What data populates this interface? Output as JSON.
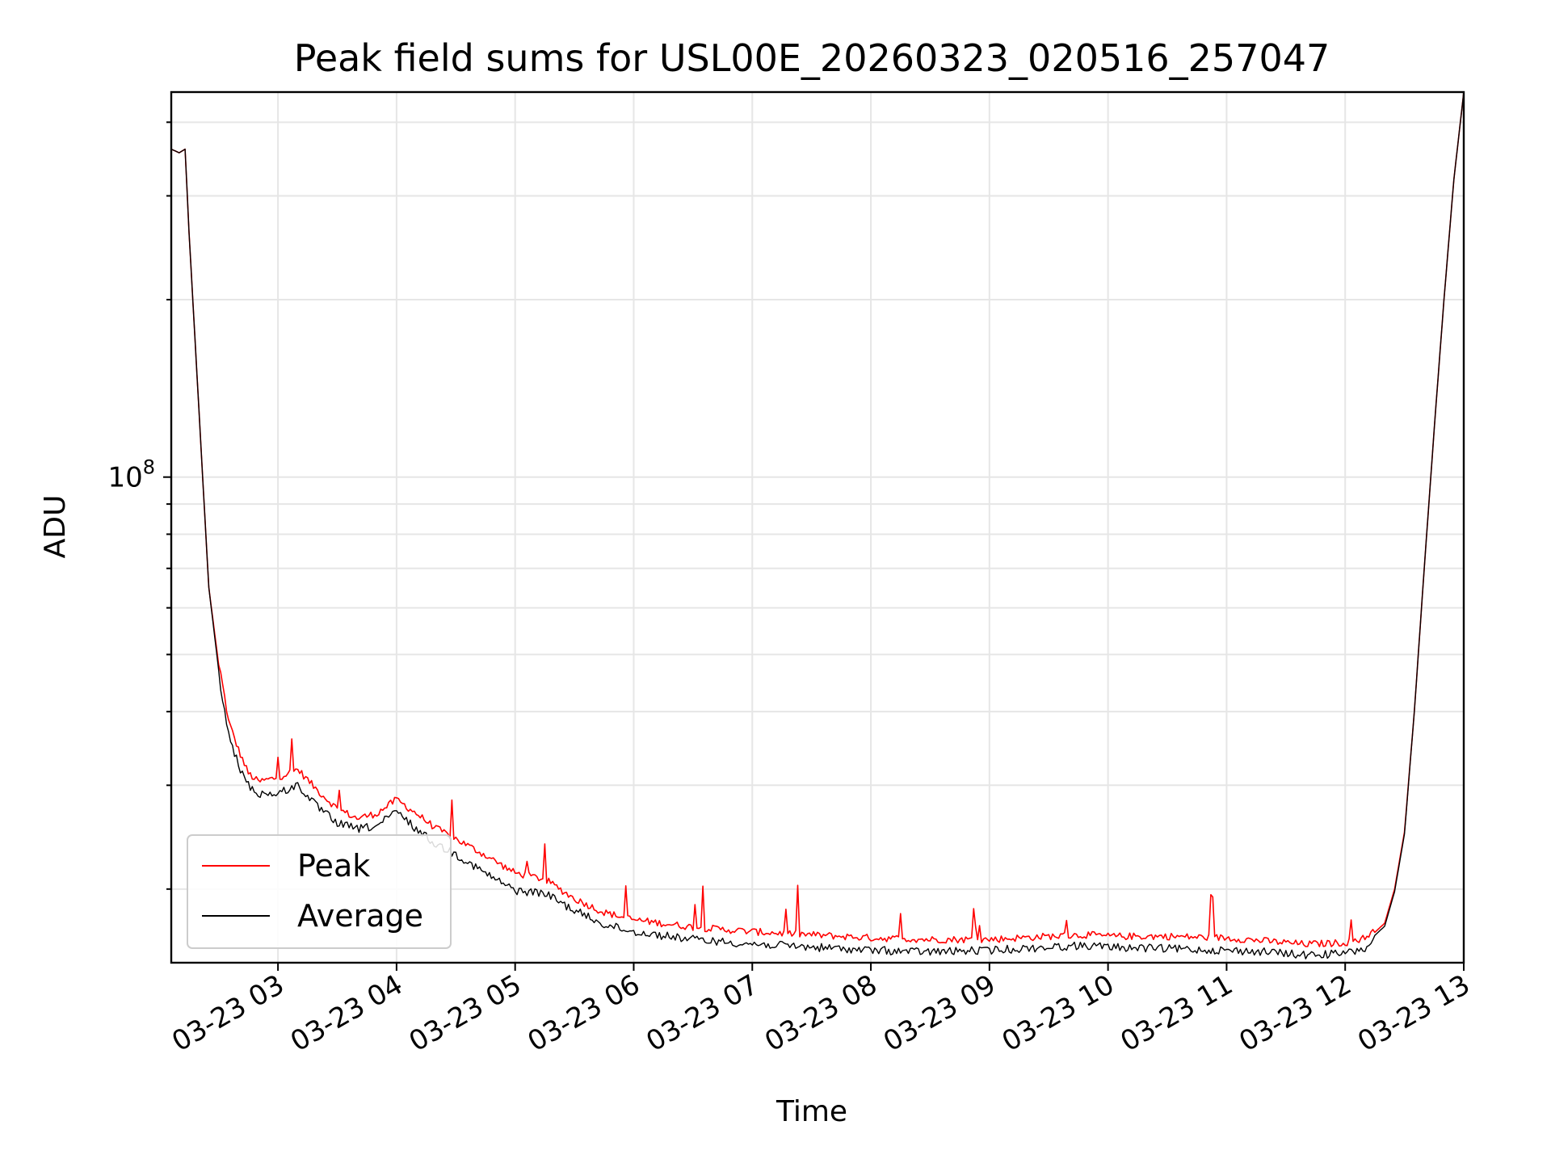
{
  "chart_data": {
    "type": "line",
    "title": "Peak field sums for USL00E_20260323_020516_257047",
    "xlabel": "Time",
    "ylabel": "ADU",
    "y_scale": "log",
    "ylim": [
      15000000,
      450000000
    ],
    "xlim": [
      "03-23 02:06",
      "03-23 13:00"
    ],
    "x_ticks": [
      "03-23 03",
      "03-23 04",
      "03-23 05",
      "03-23 06",
      "03-23 07",
      "03-23 08",
      "03-23 09",
      "03-23 10",
      "03-23 11",
      "03-23 12",
      "03-23 13"
    ],
    "y_ticks": [
      "10^8"
    ],
    "grid": true,
    "legend_position": "lower-left",
    "series": [
      {
        "name": "Peak",
        "color": "#ff0000",
        "x": [
          "02:06",
          "02:10",
          "02:13",
          "02:15",
          "02:20",
          "02:25",
          "02:30",
          "02:35",
          "02:40",
          "02:45",
          "02:50",
          "03:00",
          "03:10",
          "03:20",
          "03:30",
          "03:40",
          "03:50",
          "04:00",
          "04:10",
          "04:20",
          "04:30",
          "04:45",
          "05:00",
          "05:15",
          "05:30",
          "05:45",
          "06:00",
          "06:30",
          "07:00",
          "07:30",
          "08:00",
          "08:30",
          "09:00",
          "09:30",
          "09:50",
          "10:00",
          "10:30",
          "11:00",
          "11:20",
          "11:40",
          "12:00",
          "12:10",
          "12:20",
          "12:25",
          "12:30",
          "12:35",
          "12:40",
          "12:45",
          "12:50",
          "12:55",
          "13:00"
        ],
        "y": [
          360000000,
          355000000,
          360000000,
          260000000,
          130000000,
          65000000,
          48000000,
          38000000,
          34000000,
          31000000,
          30000000,
          30500000,
          31500000,
          29000000,
          27000000,
          26000000,
          26500000,
          28000000,
          26500000,
          25000000,
          24000000,
          22500000,
          21000000,
          20500000,
          19000000,
          18000000,
          17500000,
          17000000,
          16700000,
          16500000,
          16300000,
          16200000,
          16200000,
          16400000,
          16500000,
          16400000,
          16400000,
          16300000,
          16100000,
          15900000,
          16000000,
          16300000,
          17500000,
          20000000,
          25000000,
          40000000,
          70000000,
          120000000,
          200000000,
          320000000,
          450000000
        ]
      },
      {
        "name": "Average",
        "color": "#000000",
        "x": [
          "02:06",
          "02:10",
          "02:13",
          "02:15",
          "02:20",
          "02:25",
          "02:30",
          "02:35",
          "02:40",
          "02:45",
          "02:50",
          "03:00",
          "03:10",
          "03:20",
          "03:30",
          "03:40",
          "03:50",
          "04:00",
          "04:10",
          "04:20",
          "04:30",
          "04:45",
          "05:00",
          "05:15",
          "05:30",
          "05:45",
          "06:00",
          "06:30",
          "07:00",
          "07:30",
          "08:00",
          "08:30",
          "09:00",
          "09:30",
          "09:50",
          "10:00",
          "10:30",
          "11:00",
          "11:20",
          "11:40",
          "12:00",
          "12:10",
          "12:20",
          "12:25",
          "12:30",
          "12:35",
          "12:40",
          "12:45",
          "12:50",
          "12:55",
          "13:00"
        ],
        "y": [
          360000000,
          355000000,
          360000000,
          260000000,
          130000000,
          65000000,
          47000000,
          37000000,
          33000000,
          30500000,
          29500000,
          29500000,
          30500000,
          28000000,
          26300000,
          25700000,
          26000000,
          27500000,
          25700000,
          24200000,
          23300000,
          21600000,
          20200000,
          20000000,
          18700000,
          17700000,
          17200000,
          16700000,
          16400000,
          16200000,
          16000000,
          15900000,
          16000000,
          16200000,
          16300000,
          16200000,
          16100000,
          16000000,
          15900000,
          15700000,
          15800000,
          16100000,
          17300000,
          19800000,
          24800000,
          40000000,
          70000000,
          120000000,
          200000000,
          320000000,
          450000000
        ]
      }
    ]
  }
}
